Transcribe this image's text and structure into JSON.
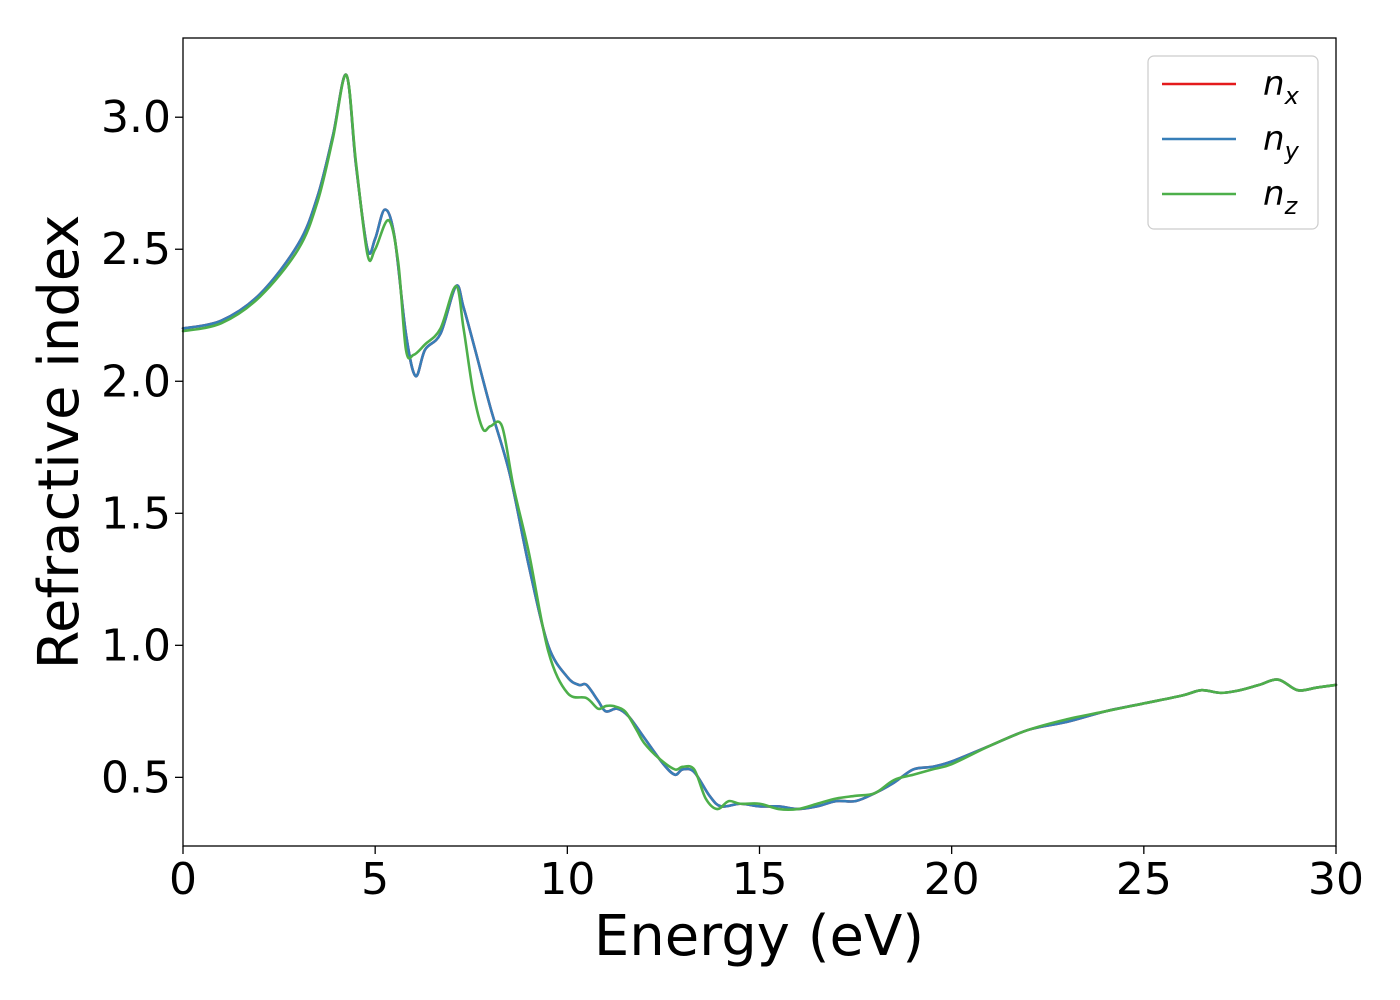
{
  "chart_data": {
    "type": "line",
    "xlabel": "Energy (eV)",
    "ylabel": "Refractive index",
    "xlim": [
      0,
      30
    ],
    "ylim": [
      0.24,
      3.3
    ],
    "xticks": [
      0,
      5,
      10,
      15,
      20,
      25,
      30
    ],
    "xtick_labels": [
      "0",
      "5",
      "10",
      "15",
      "20",
      "25",
      "30"
    ],
    "yticks": [
      0.5,
      1.0,
      1.5,
      2.0,
      2.5,
      3.0
    ],
    "ytick_labels": [
      "0.5",
      "1.0",
      "1.5",
      "2.0",
      "2.5",
      "3.0"
    ],
    "grid": false,
    "legend_position": "top-right",
    "series": [
      {
        "name": "n",
        "subscript": "x",
        "color": "#e41a1c",
        "x": [
          0,
          1,
          2,
          3,
          3.5,
          3.9,
          4.25,
          4.5,
          4.8,
          5.0,
          5.25,
          5.5,
          5.8,
          6.05,
          6.3,
          6.7,
          7.1,
          7.3,
          7.6,
          8.0,
          8.5,
          9.0,
          9.5,
          10.0,
          10.3,
          10.5,
          10.8,
          11.0,
          11.3,
          11.6,
          12.0,
          12.5,
          12.8,
          13.0,
          13.3,
          13.7,
          14.0,
          14.5,
          15.0,
          15.5,
          16.0,
          16.5,
          17.0,
          17.5,
          18.0,
          18.5,
          19.0,
          19.5,
          20.0,
          21.0,
          22.0,
          23.0,
          24.0,
          25.0,
          26.0,
          26.5,
          27.0,
          27.5,
          28.0,
          28.5,
          29.0,
          29.5,
          30.0
        ],
        "y": [
          2.2,
          2.23,
          2.33,
          2.52,
          2.7,
          2.93,
          3.16,
          2.82,
          2.5,
          2.54,
          2.65,
          2.55,
          2.18,
          2.02,
          2.12,
          2.18,
          2.36,
          2.28,
          2.12,
          1.9,
          1.65,
          1.3,
          1.0,
          0.88,
          0.85,
          0.85,
          0.79,
          0.75,
          0.76,
          0.73,
          0.65,
          0.55,
          0.51,
          0.53,
          0.52,
          0.43,
          0.39,
          0.4,
          0.39,
          0.39,
          0.38,
          0.39,
          0.41,
          0.41,
          0.44,
          0.48,
          0.53,
          0.54,
          0.56,
          0.62,
          0.68,
          0.71,
          0.75,
          0.78,
          0.81,
          0.83,
          0.82,
          0.83,
          0.85,
          0.87,
          0.83,
          0.84,
          0.85
        ]
      },
      {
        "name": "n",
        "subscript": "y",
        "color": "#377eb8",
        "x": [
          0,
          1,
          2,
          3,
          3.5,
          3.9,
          4.25,
          4.5,
          4.8,
          5.0,
          5.25,
          5.5,
          5.8,
          6.05,
          6.3,
          6.7,
          7.1,
          7.3,
          7.6,
          8.0,
          8.5,
          9.0,
          9.5,
          10.0,
          10.3,
          10.5,
          10.8,
          11.0,
          11.3,
          11.6,
          12.0,
          12.5,
          12.8,
          13.0,
          13.3,
          13.7,
          14.0,
          14.5,
          15.0,
          15.5,
          16.0,
          16.5,
          17.0,
          17.5,
          18.0,
          18.5,
          19.0,
          19.5,
          20.0,
          21.0,
          22.0,
          23.0,
          24.0,
          25.0,
          26.0,
          26.5,
          27.0,
          27.5,
          28.0,
          28.5,
          29.0,
          29.5,
          30.0
        ],
        "y": [
          2.2,
          2.23,
          2.33,
          2.52,
          2.7,
          2.93,
          3.16,
          2.82,
          2.5,
          2.54,
          2.65,
          2.55,
          2.18,
          2.02,
          2.12,
          2.18,
          2.36,
          2.28,
          2.12,
          1.9,
          1.65,
          1.3,
          1.0,
          0.88,
          0.85,
          0.85,
          0.79,
          0.75,
          0.76,
          0.73,
          0.65,
          0.55,
          0.51,
          0.53,
          0.52,
          0.43,
          0.39,
          0.4,
          0.39,
          0.39,
          0.38,
          0.39,
          0.41,
          0.41,
          0.44,
          0.48,
          0.53,
          0.54,
          0.56,
          0.62,
          0.68,
          0.71,
          0.75,
          0.78,
          0.81,
          0.83,
          0.82,
          0.83,
          0.85,
          0.87,
          0.83,
          0.84,
          0.85
        ]
      },
      {
        "name": "n",
        "subscript": "z",
        "color": "#4daf4a",
        "x": [
          0,
          1,
          2,
          3,
          3.5,
          3.9,
          4.25,
          4.5,
          4.8,
          5.0,
          5.35,
          5.6,
          5.8,
          6.0,
          6.3,
          6.7,
          7.1,
          7.3,
          7.55,
          7.8,
          8.0,
          8.3,
          8.6,
          9.0,
          9.5,
          10.0,
          10.5,
          10.8,
          11.0,
          11.2,
          11.5,
          11.8,
          12.0,
          12.4,
          12.8,
          13.0,
          13.3,
          13.6,
          13.9,
          14.2,
          14.5,
          15.0,
          15.5,
          16.0,
          16.5,
          17.0,
          17.5,
          18.0,
          18.5,
          19.0,
          19.5,
          20.0,
          21.0,
          22.0,
          23.0,
          24.0,
          25.0,
          26.0,
          26.5,
          27.0,
          27.5,
          28.0,
          28.5,
          29.0,
          29.5,
          30.0
        ],
        "y": [
          2.19,
          2.22,
          2.32,
          2.5,
          2.68,
          2.92,
          3.16,
          2.83,
          2.48,
          2.5,
          2.61,
          2.45,
          2.12,
          2.1,
          2.14,
          2.2,
          2.36,
          2.2,
          1.96,
          1.82,
          1.83,
          1.83,
          1.6,
          1.35,
          0.98,
          0.82,
          0.8,
          0.76,
          0.77,
          0.77,
          0.75,
          0.68,
          0.63,
          0.57,
          0.53,
          0.54,
          0.53,
          0.42,
          0.38,
          0.41,
          0.4,
          0.4,
          0.38,
          0.38,
          0.4,
          0.42,
          0.43,
          0.44,
          0.49,
          0.51,
          0.53,
          0.55,
          0.62,
          0.68,
          0.72,
          0.75,
          0.78,
          0.81,
          0.83,
          0.82,
          0.83,
          0.85,
          0.87,
          0.83,
          0.84,
          0.85
        ]
      }
    ]
  }
}
